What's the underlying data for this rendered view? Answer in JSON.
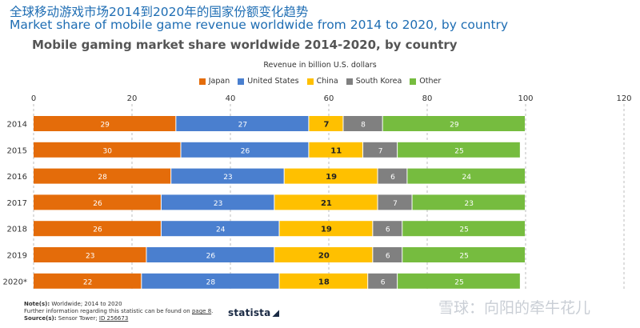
{
  "header": {
    "title_cn": "全球移动游戏市场2014到2020年的国家份额变化趋势",
    "title_en": "Market share of mobile game revenue worldwide from 2014 to 2020, by country",
    "subtitle": "Mobile gaming market share worldwide 2014-2020, by country"
  },
  "chart_data": {
    "type": "bar",
    "orientation": "horizontal-stacked",
    "axis_title": "Revenue in billion U.S. dollars",
    "categories": [
      "2014",
      "2015",
      "2016",
      "2017",
      "2018",
      "2019",
      "2020*"
    ],
    "series": [
      {
        "name": "Japan",
        "color": "#e46c0a",
        "values": [
          29,
          30,
          28,
          26,
          26,
          23,
          22
        ]
      },
      {
        "name": "United States",
        "color": "#4a7fcf",
        "values": [
          27,
          26,
          23,
          23,
          24,
          26,
          28
        ]
      },
      {
        "name": "China",
        "color": "#ffc000",
        "values": [
          7,
          11,
          19,
          21,
          19,
          20,
          18
        ]
      },
      {
        "name": "South Korea",
        "color": "#808080",
        "values": [
          8,
          7,
          6,
          7,
          6,
          6,
          6
        ]
      },
      {
        "name": "Other",
        "color": "#76bc3f",
        "values": [
          29,
          25,
          24,
          23,
          25,
          25,
          25
        ]
      }
    ],
    "xlim": [
      0,
      120
    ],
    "ticks": [
      0,
      20,
      40,
      60,
      80,
      100,
      120
    ],
    "grid": true,
    "legend_position": "top-center"
  },
  "footer": {
    "notes_label": "Note(s):",
    "notes_text": " Worldwide; 2014 to 2020",
    "further_info": "Further information regarding this statistic can be found on ",
    "page_link": "page 8",
    "source_label": "Source(s):",
    "source_text": " Sensor Tower; ",
    "source_id": "ID 256673",
    "brand": "statista",
    "watermark": "雪球：向阳的牵牛花儿"
  }
}
